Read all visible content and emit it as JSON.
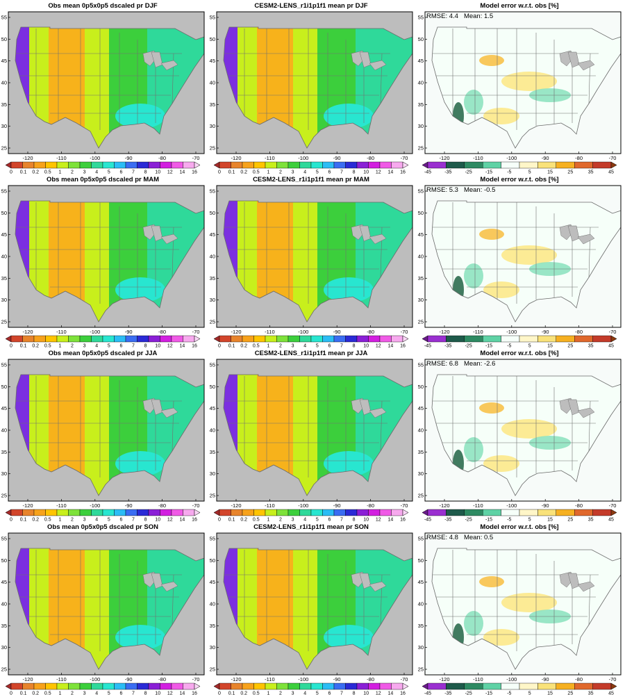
{
  "lat_ticks": [
    "25",
    "30",
    "35",
    "40",
    "45",
    "50",
    "55"
  ],
  "lon_ticks": [
    "-120",
    "-110",
    "-100",
    "-90",
    "-80",
    "-70"
  ],
  "precip_colorbar": {
    "labels": [
      "0",
      "0.1",
      "0.2",
      "0.5",
      "1",
      "2",
      "3",
      "4",
      "5",
      "6",
      "7",
      "8",
      "10",
      "12",
      "14",
      "16"
    ],
    "colors": [
      "#a52a2a",
      "#d2452b",
      "#e8842c",
      "#f7a21b",
      "#ffc400",
      "#c8ef1c",
      "#7ee23a",
      "#3ccf3c",
      "#2fd99a",
      "#28e6d0",
      "#2bbdf5",
      "#3a6df2",
      "#2a2ad6",
      "#8a1fd6",
      "#d21fe0",
      "#f05ae6",
      "#f7a9ee",
      "#fbd6f7"
    ]
  },
  "error_colorbar": {
    "labels": [
      "-45",
      "-35",
      "-25",
      "-15",
      "-5",
      "5",
      "15",
      "25",
      "35",
      "45"
    ],
    "colors": [
      "#6a1c8a",
      "#9a2fd0",
      "#1e5a4a",
      "#2e8a62",
      "#5fd2a5",
      "#f6fff9",
      "#fff6c8",
      "#f9e27a",
      "#f6b021",
      "#e0682c",
      "#c43b2a",
      "#8c3a10"
    ]
  },
  "rows": [
    {
      "season": "DJF",
      "obs_title": "Obs mean 0p5x0p5 dscaled pr DJF",
      "model_title": "CESM2-LENS_r1i1p1f1 mean pr DJF",
      "err_title": "Model error w.r.t. obs [%]",
      "rmse": "RMSE: 4.4",
      "mean": "Mean: 1.5"
    },
    {
      "season": "MAM",
      "obs_title": "Obs mean 0p5x0p5 dscaled pr MAM",
      "model_title": "CESM2-LENS_r1i1p1f1 mean pr MAM",
      "err_title": "Model error w.r.t. obs [%]",
      "rmse": "RMSE: 5.3",
      "mean": "Mean: -0.5"
    },
    {
      "season": "JJA",
      "obs_title": "Obs mean 0p5x0p5 dscaled pr JJA",
      "model_title": "CESM2-LENS_r1i1p1f1 mean pr JJA",
      "err_title": "Model error w.r.t. obs [%]",
      "rmse": "RMSE: 6.8",
      "mean": "Mean: -2.6"
    },
    {
      "season": "SON",
      "obs_title": "Obs mean 0p5x0p5 dscaled pr SON",
      "model_title": "CESM2-LENS_r1i1p1f1 mean pr SON",
      "err_title": "Model error w.r.t. obs [%]",
      "rmse": "RMSE: 4.8",
      "mean": "Mean: 0.5"
    }
  ]
}
